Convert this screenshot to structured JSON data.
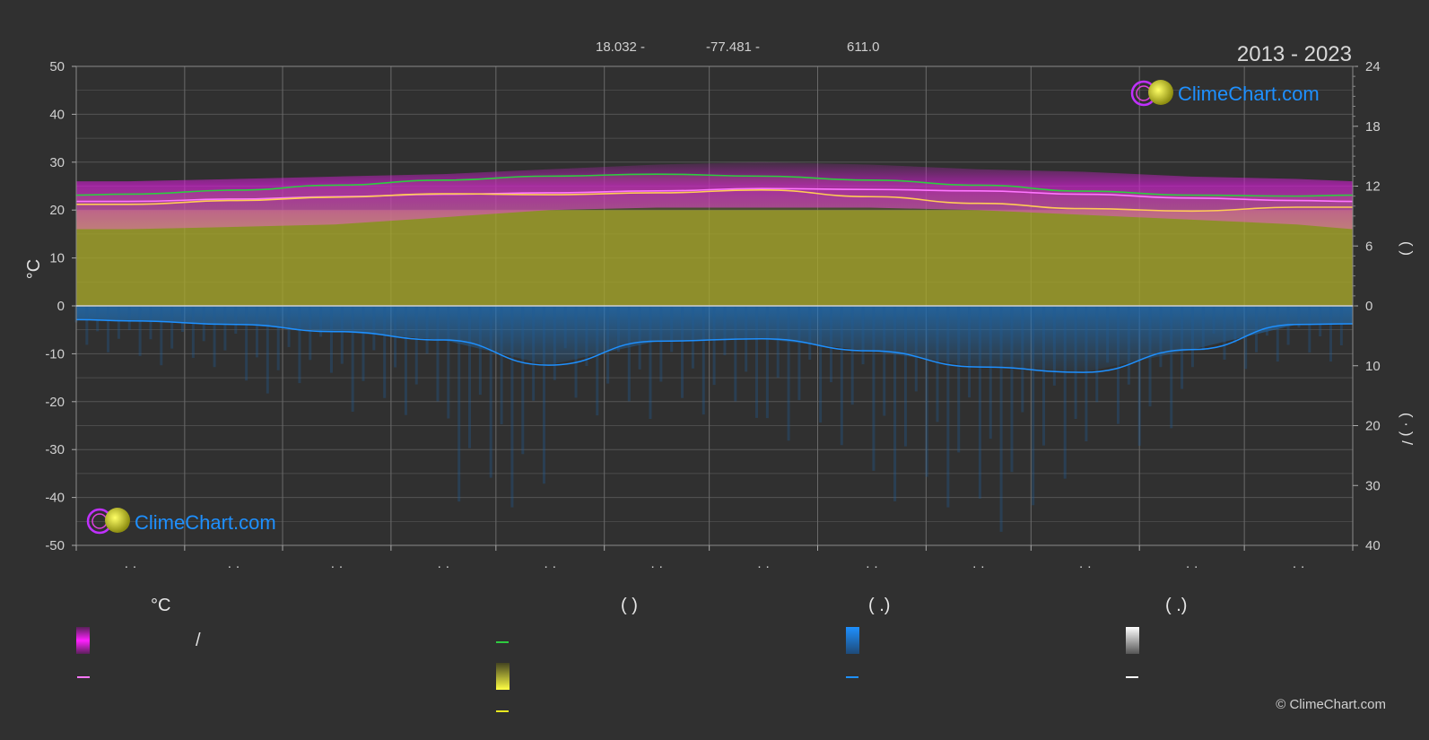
{
  "header": {
    "latitude": "18.032 -",
    "longitude": "-77.481 -",
    "elevation": "611.0",
    "period": "2013 - 2023",
    "brand": "ClimeChart.com",
    "copyright": "© ClimeChart.com"
  },
  "axes": {
    "left_title": "°C",
    "right_upper_title": "(   )",
    "right_lower_title": "(  ·  )   /",
    "month_placeholder": "· ·"
  },
  "legend": {
    "col1_head": "°C",
    "col2_head": "(           )",
    "col3_head": "(   .)",
    "col4_head": "(   .)",
    "slash": "/"
  },
  "colors": {
    "background": "#303030",
    "daylight": "#2ecc40",
    "sunshine_fill": "#bfbf2a",
    "sunshine_line": "#ffee33",
    "temp_range": "#d020d0",
    "mean_temp": "#ff77ff",
    "temp_line_yellow": "#ffcc55",
    "precip_fill": "#1f78c8",
    "precip_line": "#1e90ff",
    "snow": "#ffffff"
  },
  "chart_data": {
    "type": "area",
    "months": 12,
    "x_days": [
      0,
      15,
      46,
      74,
      105,
      135,
      166,
      196,
      227,
      258,
      288,
      319,
      349,
      365
    ],
    "ylim_left": [
      -50,
      50
    ],
    "yticks_left": [
      50,
      40,
      30,
      20,
      10,
      0,
      -10,
      -20,
      -30,
      -40,
      -50
    ],
    "yticks_right_upper": [
      24,
      18,
      12,
      6,
      0
    ],
    "yticks_right_lower": [
      0,
      10,
      20,
      30,
      40
    ],
    "ylim_right_upper": [
      0,
      24
    ],
    "ylim_right_lower": [
      0,
      40
    ],
    "grid": true,
    "series": [
      {
        "key": "daylight_hours",
        "values": [
          11.1,
          11.2,
          11.6,
          12.1,
          12.6,
          13.0,
          13.2,
          13.0,
          12.6,
          12.1,
          11.5,
          11.1,
          11.0,
          11.1
        ]
      },
      {
        "key": "sunshine_hours",
        "values": [
          9.6,
          9.6,
          9.6,
          9.6,
          9.6,
          9.6,
          9.6,
          9.6,
          9.6,
          9.6,
          9.6,
          9.6,
          9.6,
          9.6
        ]
      },
      {
        "key": "temp_max_band",
        "values": [
          26,
          26,
          26.5,
          27,
          27.5,
          28.5,
          29.5,
          30,
          29.5,
          28.5,
          28,
          27,
          26.5,
          26
        ]
      },
      {
        "key": "temp_min_band",
        "values": [
          16,
          16,
          16.5,
          17,
          18.5,
          20,
          20.5,
          20.5,
          20.5,
          20,
          19,
          18,
          17,
          16
        ]
      },
      {
        "key": "mean_temp",
        "values": [
          21.8,
          21.8,
          22.3,
          22.8,
          23.3,
          23.6,
          24.0,
          24.5,
          24.3,
          24.0,
          23.3,
          22.5,
          22.0,
          21.8
        ]
      },
      {
        "key": "temp_yellow",
        "values": [
          21.2,
          21.2,
          22.0,
          22.7,
          23.4,
          23.2,
          23.6,
          24.2,
          22.8,
          21.4,
          20.3,
          19.8,
          20.6,
          20.6
        ]
      },
      {
        "key": "precip_mm",
        "values": [
          2.3,
          2.5,
          3.1,
          4.3,
          5.7,
          9.9,
          5.9,
          5.5,
          7.5,
          10.2,
          11.1,
          7.3,
          3.1,
          3.0
        ]
      }
    ]
  }
}
